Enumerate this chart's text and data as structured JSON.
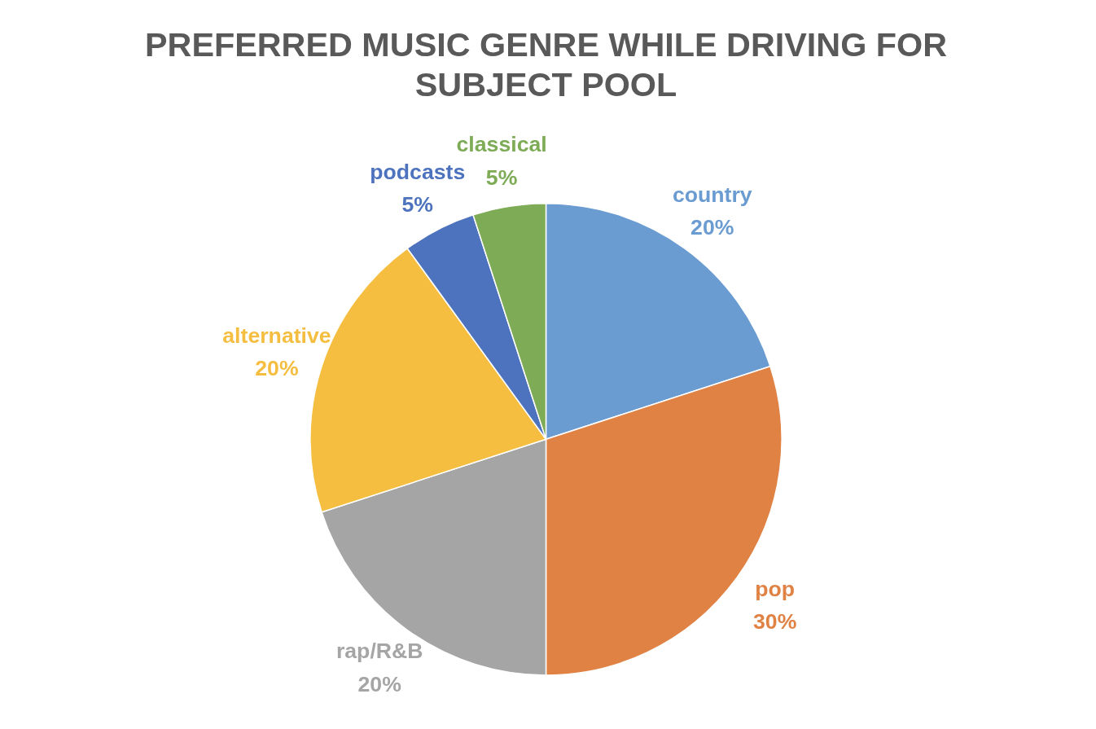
{
  "chart_data": {
    "type": "pie",
    "title": "PREFERRED MUSIC GENRE WHILE DRIVING FOR SUBJECT POOL",
    "categories": [
      "country",
      "pop",
      "rap/R&B",
      "alternative",
      "podcasts",
      "classical"
    ],
    "values": [
      20,
      30,
      20,
      20,
      5,
      5
    ],
    "value_labels": [
      "20%",
      "30%",
      "20%",
      "20%",
      "5%",
      "5%"
    ],
    "colors": [
      "#6a9bd1",
      "#e08244",
      "#a5a5a5",
      "#f5be41",
      "#4e73be",
      "#7eab55"
    ],
    "legend": false
  }
}
